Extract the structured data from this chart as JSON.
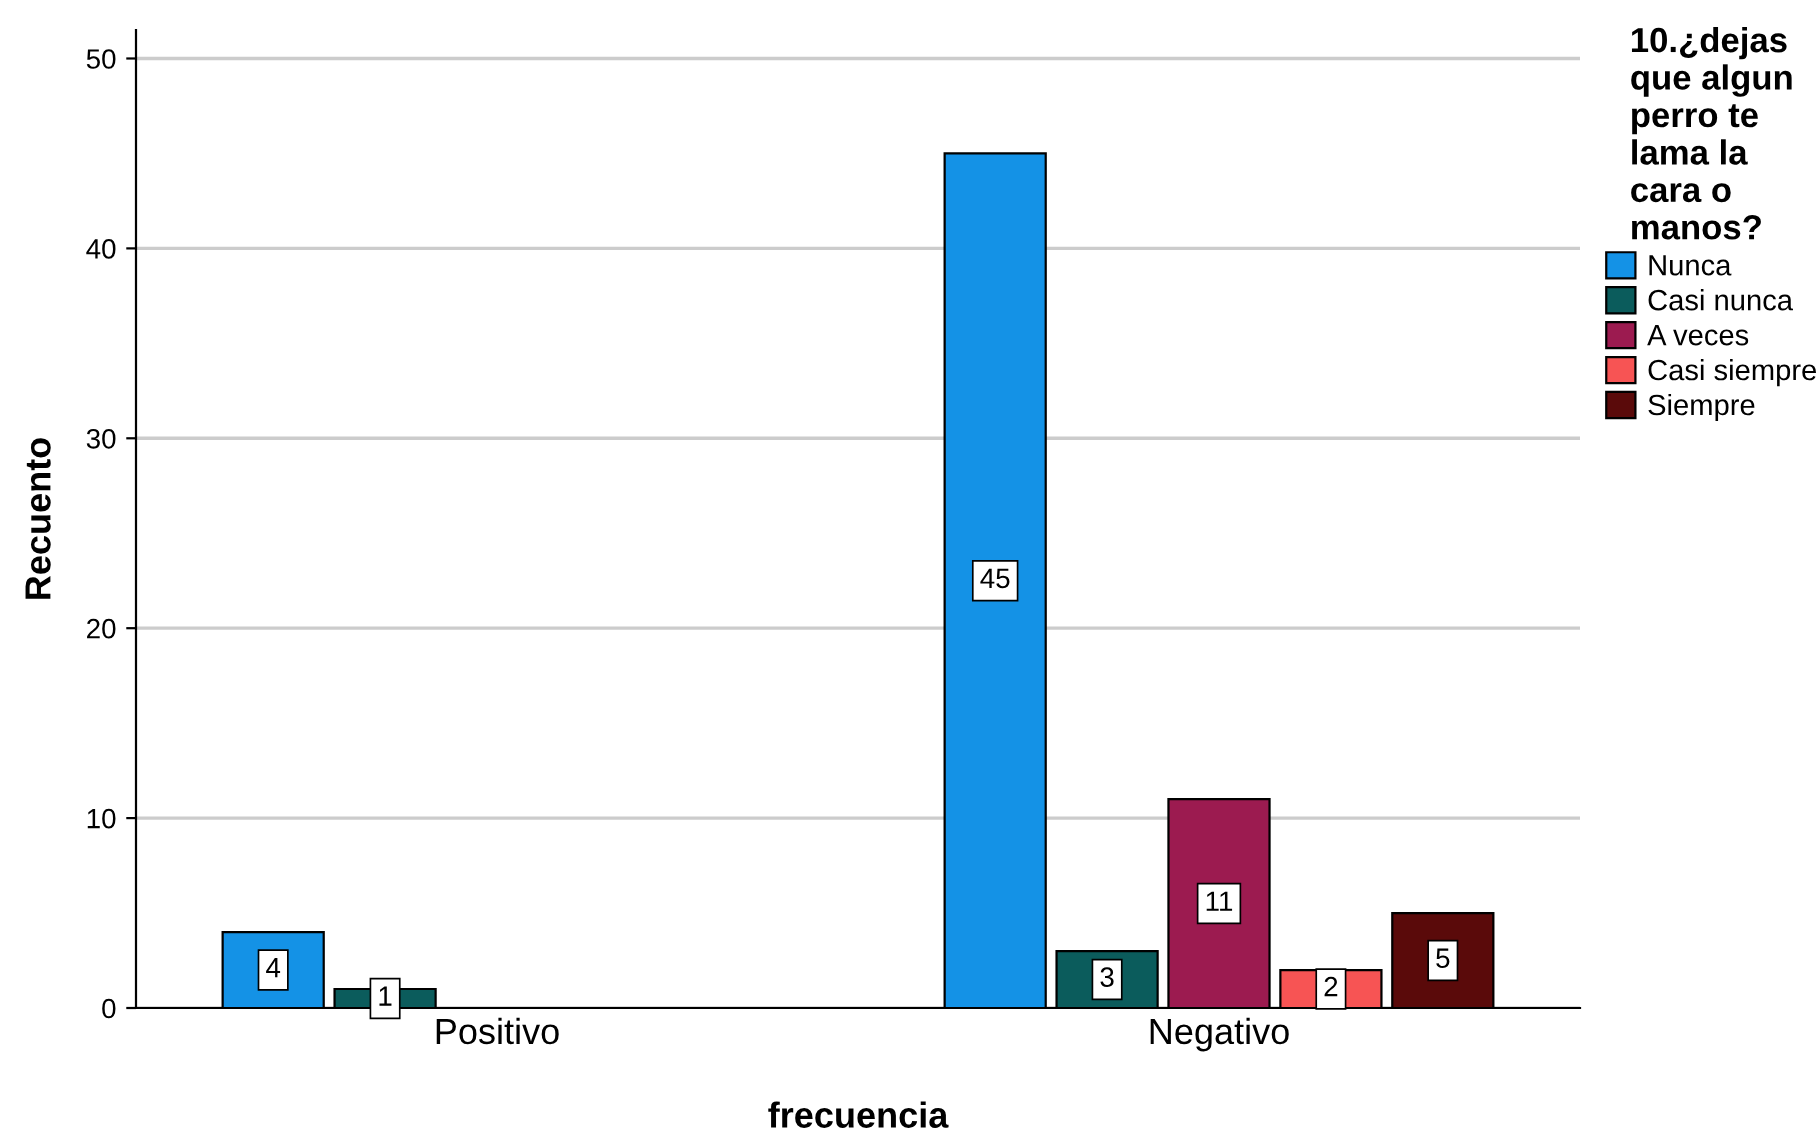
{
  "chart_data": {
    "type": "bar",
    "xlabel": "frecuencia",
    "ylabel": "Recuento",
    "legend_title": "10.¿dejas que algun perro te lama la cara o manos?",
    "categories": [
      "Positivo",
      "Negativo"
    ],
    "series": [
      {
        "name": "Nunca",
        "color": "#1492e6",
        "values": [
          4,
          45
        ]
      },
      {
        "name": "Casi nunca",
        "color": "#0b5c5c",
        "values": [
          1,
          3
        ]
      },
      {
        "name": "A veces",
        "color": "#9c1b50",
        "values": [
          null,
          11
        ]
      },
      {
        "name": "Casi siempre",
        "color": "#f75454",
        "values": [
          null,
          2
        ]
      },
      {
        "name": "Siempre",
        "color": "#5a0a0a",
        "values": [
          null,
          5
        ]
      }
    ],
    "ylim": [
      0,
      51.5
    ],
    "yticks": [
      0,
      10,
      20,
      30,
      40,
      50
    ],
    "grid": "y",
    "legend": "right",
    "data_labels": true
  }
}
